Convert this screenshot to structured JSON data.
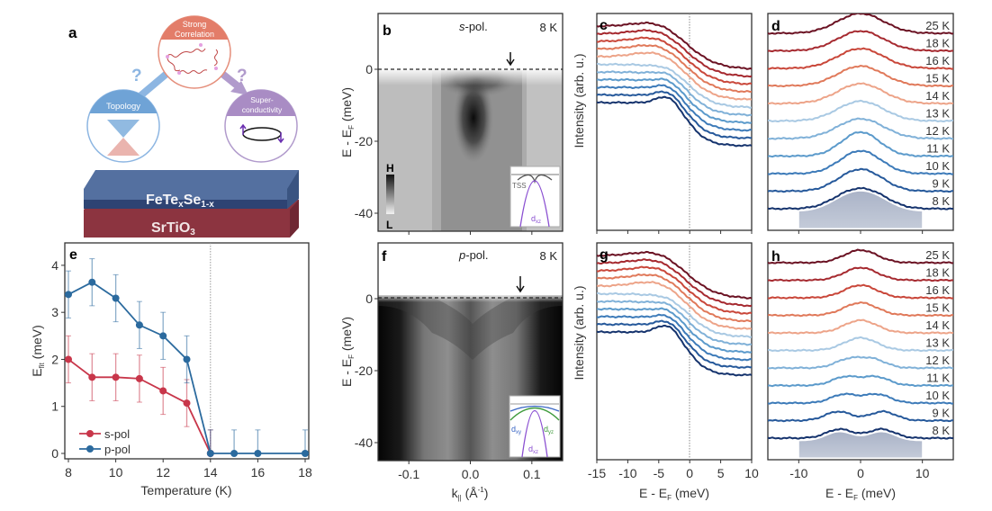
{
  "figure": {
    "panel_letters": [
      "a",
      "b",
      "c",
      "d",
      "e",
      "f",
      "g",
      "h"
    ]
  },
  "schematic": {
    "top_circle_label": [
      "Strong",
      "Correlation"
    ],
    "left_circle_label": "Topology",
    "right_circle_label": [
      "Super-",
      "conductivity"
    ],
    "question_mark": "?",
    "film_label_main": "FeTe",
    "film_label_sub1": "x",
    "film_label_mid": "Se",
    "film_label_sub2": "1-x",
    "substrate_label_main": "SrTiO",
    "substrate_label_sub": "3",
    "colors": {
      "correlation": "#e07a68",
      "topology": "#6fa3d6",
      "superconductivity": "#a98cc4",
      "film": "#3b5688",
      "substrate": "#8c3440"
    }
  },
  "chart_data": [
    {
      "panel": "e",
      "type": "line",
      "title": "",
      "xlabel": "Temperature (K)",
      "ylabel_main": "E",
      "ylabel_sub": "fit",
      "ylabel_unit": " (meV)",
      "xlim": [
        7.8,
        18.3
      ],
      "ylim": [
        -0.1,
        4.5
      ],
      "xticks": [
        8,
        10,
        12,
        14,
        16,
        18
      ],
      "yticks": [
        0,
        1,
        2,
        3,
        4
      ],
      "vline": 14,
      "legend_position": "bottom-left",
      "series": [
        {
          "name": "s-pol",
          "color": "#c8364a",
          "x": [
            8,
            9,
            10,
            11,
            12,
            13,
            14
          ],
          "y": [
            2.0,
            1.62,
            1.62,
            1.59,
            1.33,
            1.07,
            0
          ],
          "err": [
            0.5,
            0.5,
            0.5,
            0.5,
            0.5,
            0.5,
            0.5
          ]
        },
        {
          "name": "p-pol",
          "color": "#2b6a9e",
          "x": [
            8,
            9,
            10,
            11,
            12,
            13,
            14,
            15,
            16,
            18
          ],
          "y": [
            3.38,
            3.64,
            3.3,
            2.73,
            2.5,
            2.0,
            0,
            0,
            0,
            0
          ],
          "err": [
            0.5,
            0.5,
            0.5,
            0.5,
            0.5,
            0.5,
            0.5,
            0.5,
            0.5,
            0.5
          ]
        }
      ]
    },
    {
      "panel": "b",
      "type": "heatmap",
      "title_pol": "s",
      "title_suffix": "-pol.",
      "temperature": "8 K",
      "ylabel": "E - E",
      "ylabel_sub": "F",
      "ylabel_unit": " (meV)",
      "xlim": [
        -0.15,
        0.15
      ],
      "ylim": [
        -45,
        15
      ],
      "yticks": [
        0,
        -20,
        -40
      ],
      "xticks": [
        -0.1,
        0.0,
        0.1
      ],
      "fermi_line": 0,
      "arrow_k": 0.068,
      "colorbar": {
        "high": "H",
        "low": "L"
      },
      "inset_labels": {
        "tss": "TSS",
        "dxz_main": "d",
        "dxz_sub": "xz"
      }
    },
    {
      "panel": "f",
      "type": "heatmap",
      "title_pol": "p",
      "title_suffix": "-pol.",
      "temperature": "8 K",
      "ylabel": "E - E",
      "ylabel_sub": "F",
      "ylabel_unit": " (meV)",
      "xlabel": "k",
      "xlabel_sub": "||",
      "xlabel_unit": " (Å",
      "xlabel_sup": "-1",
      "xlabel_close": ")",
      "xlim": [
        -0.15,
        0.15
      ],
      "ylim": [
        -45,
        15
      ],
      "yticks": [
        0,
        -20,
        -40
      ],
      "xticks": [
        "-0.1",
        "0.0",
        "0.1"
      ],
      "fermi_line": 0,
      "arrow_k": 0.085,
      "inset_labels": {
        "dxy_main": "d",
        "dxy_sub": "xy",
        "dyz_main": "d",
        "dyz_sub": "yz",
        "dxz_main": "d",
        "dxz_sub": "xz"
      }
    },
    {
      "panel": "c",
      "type": "line",
      "ylabel": "Intensity (arb. u.)",
      "xlim": [
        -15,
        10
      ],
      "xticks": [
        -15,
        -10,
        -5,
        0,
        5,
        10
      ],
      "vline": 0,
      "series_temperatures": [
        "25 K",
        "18 K",
        "16 K",
        "15 K",
        "14 K",
        "13 K",
        "12 K",
        "11 K",
        "10 K",
        "9 K",
        "8 K"
      ]
    },
    {
      "panel": "g",
      "type": "line",
      "ylabel": "Intensity (arb. u.)",
      "xlabel": "E - E",
      "xlabel_sub": "F",
      "xlabel_unit": " (meV)",
      "xlim": [
        -15,
        10
      ],
      "xticks": [
        "-15",
        "-10",
        "-5",
        "0",
        "5",
        "10"
      ],
      "vline": 0,
      "series_temperatures": [
        "25 K",
        "18 K",
        "16 K",
        "15 K",
        "14 K",
        "13 K",
        "12 K",
        "11 K",
        "10 K",
        "9 K",
        "8 K"
      ]
    },
    {
      "panel": "d",
      "type": "line",
      "xlim": [
        -15,
        15
      ],
      "xticks": [
        -10,
        0,
        10
      ],
      "series_labels": [
        "25 K",
        "18 K",
        "16 K",
        "15 K",
        "14 K",
        "13 K",
        "12 K",
        "11 K",
        "10 K",
        "9 K",
        "8 K"
      ],
      "gap_meV": [
        0,
        0,
        0,
        0,
        0,
        0,
        0,
        0.8,
        1.3,
        1.6,
        2.0
      ]
    },
    {
      "panel": "h",
      "type": "line",
      "xlabel": "E - E",
      "xlabel_sub": "F",
      "xlabel_unit": " (meV)",
      "xlim": [
        -15,
        15
      ],
      "xticks": [
        "-10",
        "0",
        "10"
      ],
      "series_labels": [
        "25 K",
        "18 K",
        "16 K",
        "15 K",
        "14 K",
        "13 K",
        "12 K",
        "11 K",
        "10 K",
        "9 K",
        "8 K"
      ],
      "gap_meV": [
        0,
        0,
        0,
        0,
        0,
        0,
        2.0,
        2.5,
        2.7,
        3.6,
        3.4
      ]
    }
  ],
  "series_colors": [
    "#6b1223",
    "#a62a30",
    "#c9473a",
    "#e0795a",
    "#eda489",
    "#a9c9e3",
    "#80b1d8",
    "#5b9acb",
    "#3d7bb9",
    "#26599b",
    "#15336d"
  ]
}
